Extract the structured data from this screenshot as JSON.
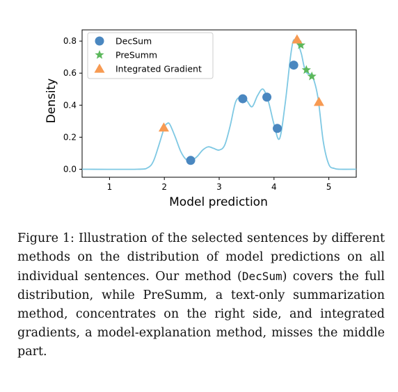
{
  "chart_data": {
    "type": "line",
    "xlabel": "Model prediction",
    "ylabel": "Density",
    "xlim": [
      0.5,
      5.5
    ],
    "ylim": [
      -0.05,
      0.87
    ],
    "xticks": [
      1,
      2,
      3,
      4,
      5
    ],
    "yticks": [
      0.0,
      0.2,
      0.4,
      0.6,
      0.8
    ],
    "xtick_labels": [
      "1",
      "2",
      "3",
      "4",
      "5"
    ],
    "ytick_labels": [
      "0.0",
      "0.2",
      "0.4",
      "0.6",
      "0.8"
    ],
    "grid": false,
    "legend_position": "top-left",
    "density_curve": {
      "color": "#7ec8e3",
      "x": [
        0.5,
        1.5,
        1.7,
        1.8,
        1.9,
        2.0,
        2.05,
        2.1,
        2.2,
        2.3,
        2.4,
        2.5,
        2.6,
        2.7,
        2.8,
        2.9,
        3.0,
        3.1,
        3.2,
        3.3,
        3.4,
        3.5,
        3.6,
        3.7,
        3.8,
        3.9,
        4.0,
        4.1,
        4.2,
        4.3,
        4.35,
        4.4,
        4.45,
        4.5,
        4.55,
        4.6,
        4.7,
        4.8,
        4.9,
        5.0,
        5.1,
        5.2,
        5.5
      ],
      "y": [
        0.0,
        0.0,
        0.01,
        0.05,
        0.15,
        0.26,
        0.285,
        0.28,
        0.2,
        0.11,
        0.06,
        0.055,
        0.08,
        0.12,
        0.14,
        0.13,
        0.12,
        0.15,
        0.27,
        0.42,
        0.45,
        0.43,
        0.39,
        0.46,
        0.5,
        0.42,
        0.28,
        0.19,
        0.4,
        0.7,
        0.8,
        0.8,
        0.77,
        0.72,
        0.64,
        0.6,
        0.58,
        0.45,
        0.17,
        0.03,
        0.005,
        0.0,
        0.0
      ]
    },
    "series": [
      {
        "name": "DecSum",
        "marker": "circle",
        "color": "#4a87c0",
        "x": [
          2.48,
          3.43,
          3.87,
          4.06,
          4.36
        ],
        "y": [
          0.055,
          0.44,
          0.45,
          0.255,
          0.65
        ]
      },
      {
        "name": "PreSumm",
        "marker": "star",
        "color": "#5cb85c",
        "x": [
          4.49,
          4.59,
          4.69
        ],
        "y": [
          0.775,
          0.62,
          0.58
        ]
      },
      {
        "name": "Integrated Gradient",
        "marker": "triangle",
        "color": "#f79a52",
        "x": [
          1.99,
          4.42,
          4.82
        ],
        "y": [
          0.26,
          0.81,
          0.42
        ]
      }
    ]
  },
  "caption": {
    "segments": [
      {
        "text": "Figure 1: Illustration of the selected sentences by different methods on the distribution of model predictions on all individual sentences.  Our method (",
        "mono": false
      },
      {
        "text": "DecSum",
        "mono": true
      },
      {
        "text": ") covers the full distribution, while PreSumm, a text-only summarization method, concentrates on the right side, and integrated gradients, a model-explanation method, misses the middle part.",
        "mono": false
      }
    ]
  }
}
